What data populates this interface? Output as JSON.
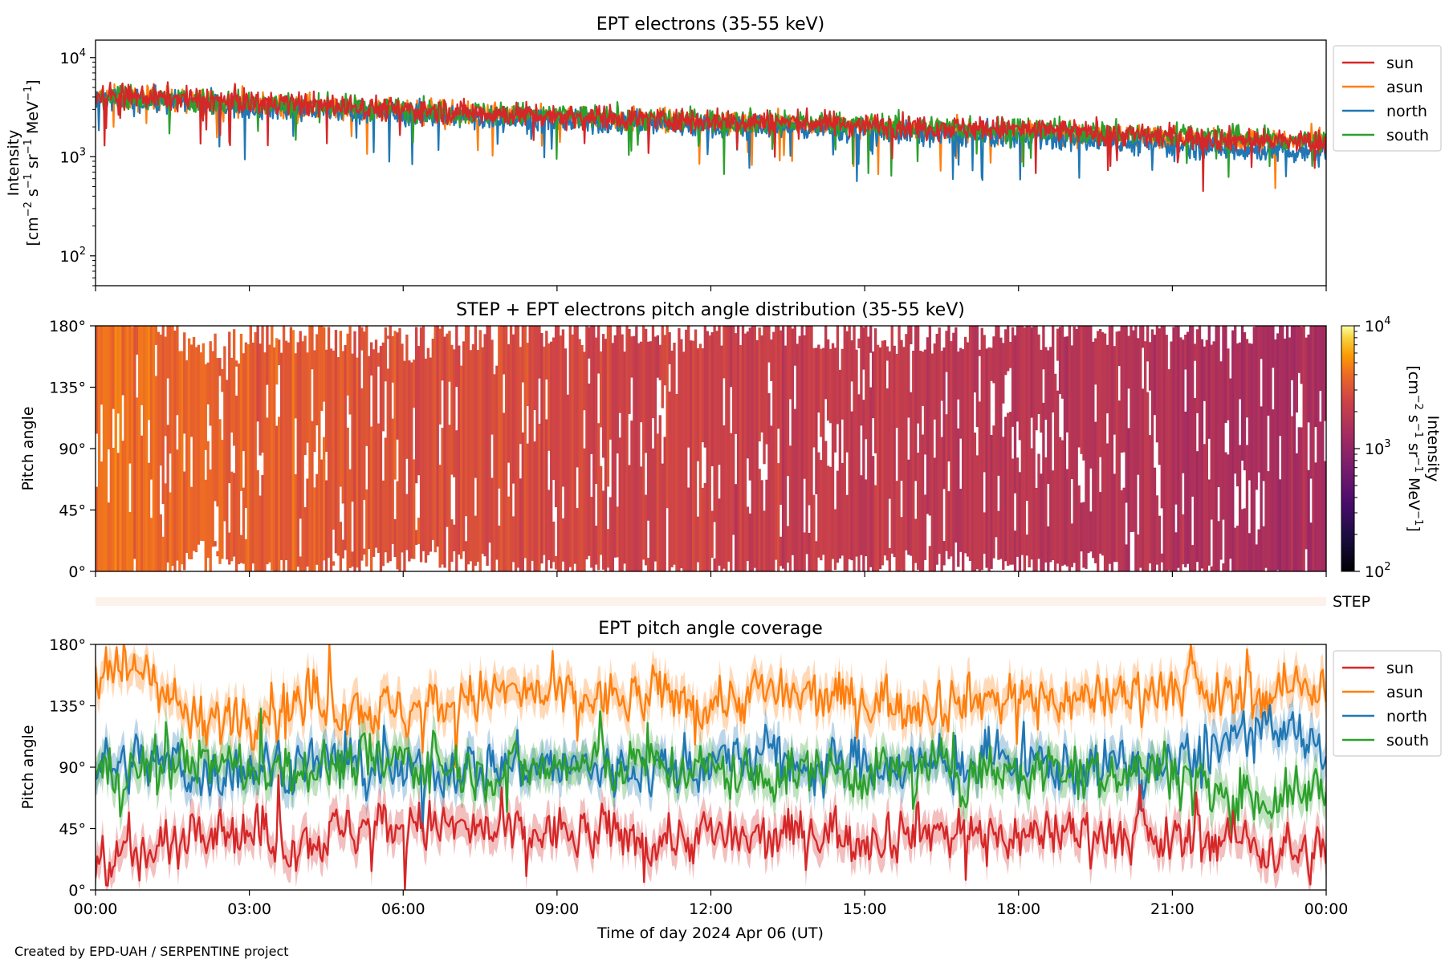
{
  "chart_data": [
    {
      "type": "line",
      "title": "EPT electrons (35-55 keV)",
      "ylabel_line1": "Intensity",
      "ylabel_line2_parts": [
        "[cm",
        "−2",
        " s",
        "−1",
        " sr",
        "−1",
        " MeV",
        "−1",
        "]"
      ],
      "yscale": "log",
      "ylim": [
        50,
        15000
      ],
      "yticks": [
        {
          "base": "10",
          "exp": "2",
          "value": 100
        },
        {
          "base": "10",
          "exp": "3",
          "value": 1000
        },
        {
          "base": "10",
          "exp": "4",
          "value": 10000
        }
      ],
      "xlim_hours": [
        0,
        24
      ],
      "legend_position": "outside-right-top",
      "series": [
        {
          "name": "sun",
          "color": "#d62728",
          "x_hours": [
            0,
            2,
            4,
            6,
            8,
            10,
            12,
            14,
            16,
            18,
            20,
            22,
            24
          ],
          "values": [
            4200,
            3800,
            3400,
            3000,
            2700,
            2500,
            2300,
            2200,
            2000,
            1900,
            1700,
            1500,
            1400
          ]
        },
        {
          "name": "asun",
          "color": "#ff7f0e",
          "x_hours": [
            0,
            2,
            4,
            6,
            8,
            10,
            12,
            14,
            16,
            18,
            20,
            22,
            24
          ],
          "values": [
            4000,
            3600,
            3200,
            2900,
            2600,
            2400,
            2200,
            2100,
            1900,
            1800,
            1600,
            1500,
            1400
          ]
        },
        {
          "name": "north",
          "color": "#1f77b4",
          "x_hours": [
            0,
            2,
            4,
            6,
            8,
            10,
            12,
            14,
            16,
            18,
            20,
            22,
            24
          ],
          "values": [
            3800,
            3400,
            3000,
            2700,
            2400,
            2200,
            2000,
            1900,
            1700,
            1600,
            1400,
            1200,
            1100
          ]
        },
        {
          "name": "south",
          "color": "#2ca02c",
          "x_hours": [
            0,
            2,
            4,
            6,
            8,
            10,
            12,
            14,
            16,
            18,
            20,
            22,
            24
          ],
          "values": [
            4100,
            3700,
            3300,
            3000,
            2700,
            2500,
            2300,
            2200,
            2000,
            1900,
            1700,
            1600,
            1400
          ]
        }
      ]
    },
    {
      "type": "heatmap",
      "title": "STEP + EPT electrons pitch angle distribution (35-55 keV)",
      "ylabel": "Pitch angle",
      "ylim": [
        0,
        180
      ],
      "yticks": [
        "0°",
        "45°",
        "90°",
        "135°",
        "180°"
      ],
      "xlim_hours": [
        0,
        24
      ],
      "colormap": "inferno",
      "colorbar": {
        "scale": "log",
        "range": [
          100,
          10000
        ],
        "ticks": [
          {
            "base": "10",
            "exp": "2"
          },
          {
            "base": "10",
            "exp": "3"
          },
          {
            "base": "10",
            "exp": "4"
          }
        ],
        "label_line1": "Intensity",
        "label_line2_parts": [
          "[cm",
          "−2",
          " s",
          "−1",
          " sr",
          "−1",
          " MeV",
          "−1",
          "]"
        ]
      },
      "intensity_trend_x_hours": [
        0,
        6,
        12,
        18,
        24
      ],
      "intensity_trend_values": [
        4000,
        3000,
        2300,
        1800,
        1400
      ]
    },
    {
      "type": "bar",
      "label": "STEP",
      "xlim_hours": [
        0,
        24
      ],
      "color": "#fdf1ec"
    },
    {
      "type": "line",
      "title": "EPT pitch angle coverage",
      "ylabel": "Pitch angle",
      "ylim": [
        0,
        180
      ],
      "yticks": [
        "0°",
        "45°",
        "90°",
        "135°",
        "180°"
      ],
      "xlim_hours": [
        0,
        24
      ],
      "xticks": [
        "00:00",
        "03:00",
        "06:00",
        "09:00",
        "12:00",
        "15:00",
        "18:00",
        "21:00",
        "00:00"
      ],
      "xlabel": "Time of day 2024 Apr 06 (UT)",
      "legend_position": "outside-right-top",
      "series": [
        {
          "name": "sun",
          "color": "#d62728",
          "x_hours": [
            0,
            1,
            2,
            3,
            4,
            5,
            6,
            7,
            8,
            9,
            10,
            11,
            12,
            13,
            14,
            15,
            16,
            17,
            18,
            19,
            20,
            21,
            22,
            23,
            24
          ],
          "values": [
            25,
            22,
            55,
            40,
            35,
            45,
            50,
            45,
            40,
            42,
            40,
            38,
            40,
            35,
            45,
            40,
            45,
            42,
            40,
            45,
            40,
            35,
            40,
            30,
            25
          ]
        },
        {
          "name": "asun",
          "color": "#ff7f0e",
          "x_hours": [
            0,
            1,
            2,
            3,
            4,
            5,
            6,
            7,
            8,
            9,
            10,
            11,
            12,
            13,
            14,
            15,
            16,
            17,
            18,
            19,
            20,
            21,
            22,
            23,
            24
          ],
          "values": [
            155,
            160,
            120,
            135,
            140,
            135,
            130,
            140,
            145,
            140,
            140,
            142,
            138,
            145,
            140,
            140,
            138,
            140,
            142,
            140,
            145,
            150,
            140,
            145,
            155
          ]
        },
        {
          "name": "north",
          "color": "#1f77b4",
          "x_hours": [
            0,
            1,
            2,
            3,
            4,
            5,
            6,
            7,
            8,
            9,
            10,
            11,
            12,
            13,
            14,
            15,
            16,
            17,
            18,
            19,
            20,
            21,
            22,
            23,
            24
          ],
          "values": [
            90,
            95,
            85,
            90,
            95,
            90,
            85,
            90,
            92,
            90,
            88,
            90,
            92,
            100,
            90,
            95,
            90,
            92,
            95,
            90,
            92,
            90,
            110,
            115,
            105
          ]
        },
        {
          "name": "south",
          "color": "#2ca02c",
          "x_hours": [
            0,
            1,
            2,
            3,
            4,
            5,
            6,
            7,
            8,
            9,
            10,
            11,
            12,
            13,
            14,
            15,
            16,
            17,
            18,
            19,
            20,
            21,
            22,
            23,
            24
          ],
          "values": [
            85,
            90,
            95,
            88,
            90,
            92,
            95,
            90,
            88,
            90,
            92,
            90,
            88,
            80,
            90,
            85,
            90,
            88,
            85,
            90,
            88,
            90,
            70,
            65,
            75
          ]
        }
      ]
    }
  ],
  "footer": "Created by EPD-UAH / SERPENTINE project"
}
